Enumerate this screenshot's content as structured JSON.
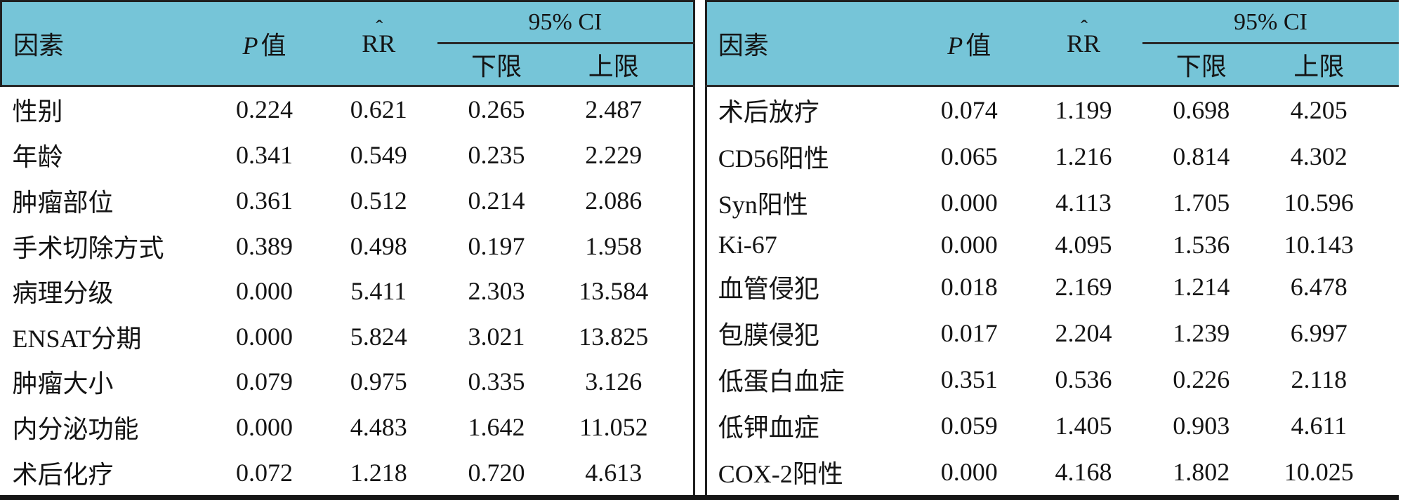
{
  "palette": {
    "header_bg": "#76C5D8",
    "rule_color": "#1f1f1f",
    "thick_rule_color": "#161616",
    "text_color": "#141414",
    "background": "#ffffff"
  },
  "header": {
    "factor_label": "因素",
    "p_italic": "P",
    "p_rest": "值",
    "rr_hat": "ˆ",
    "rr_label": "RR",
    "ci_label": "95% CI",
    "ci_lower_label": "下限",
    "ci_upper_label": "上限"
  },
  "left_table": {
    "rows": [
      {
        "factor": "性别",
        "p": "0.224",
        "rr": "0.621",
        "lower": "0.265",
        "upper": "2.487"
      },
      {
        "factor": "年龄",
        "p": "0.341",
        "rr": "0.549",
        "lower": "0.235",
        "upper": "2.229"
      },
      {
        "factor": "肿瘤部位",
        "p": "0.361",
        "rr": "0.512",
        "lower": "0.214",
        "upper": "2.086"
      },
      {
        "factor": "手术切除方式",
        "p": "0.389",
        "rr": "0.498",
        "lower": "0.197",
        "upper": "1.958"
      },
      {
        "factor": "病理分级",
        "p": "0.000",
        "rr": "5.411",
        "lower": "2.303",
        "upper": "13.584"
      },
      {
        "factor": "ENSAT分期",
        "p": "0.000",
        "rr": "5.824",
        "lower": "3.021",
        "upper": "13.825"
      },
      {
        "factor": "肿瘤大小",
        "p": "0.079",
        "rr": "0.975",
        "lower": "0.335",
        "upper": "3.126"
      },
      {
        "factor": "内分泌功能",
        "p": "0.000",
        "rr": "4.483",
        "lower": "1.642",
        "upper": "11.052"
      },
      {
        "factor": "术后化疗",
        "p": "0.072",
        "rr": "1.218",
        "lower": "0.720",
        "upper": "4.613"
      }
    ]
  },
  "right_table": {
    "rows": [
      {
        "factor": "术后放疗",
        "p": "0.074",
        "rr": "1.199",
        "lower": "0.698",
        "upper": "4.205"
      },
      {
        "factor": "CD56阳性",
        "p": "0.065",
        "rr": "1.216",
        "lower": "0.814",
        "upper": "4.302"
      },
      {
        "factor": "Syn阳性",
        "p": "0.000",
        "rr": "4.113",
        "lower": "1.705",
        "upper": "10.596"
      },
      {
        "factor": "Ki-67",
        "p": "0.000",
        "rr": "4.095",
        "lower": "1.536",
        "upper": "10.143"
      },
      {
        "factor": "血管侵犯",
        "p": "0.018",
        "rr": "2.169",
        "lower": "1.214",
        "upper": "6.478"
      },
      {
        "factor": "包膜侵犯",
        "p": "0.017",
        "rr": "2.204",
        "lower": "1.239",
        "upper": "6.997"
      },
      {
        "factor": "低蛋白血症",
        "p": "0.351",
        "rr": "0.536",
        "lower": "0.226",
        "upper": "2.118"
      },
      {
        "factor": "低钾血症",
        "p": "0.059",
        "rr": "1.405",
        "lower": "0.903",
        "upper": "4.611"
      },
      {
        "factor": "COX-2阳性",
        "p": "0.000",
        "rr": "4.168",
        "lower": "1.802",
        "upper": "10.025"
      }
    ]
  }
}
